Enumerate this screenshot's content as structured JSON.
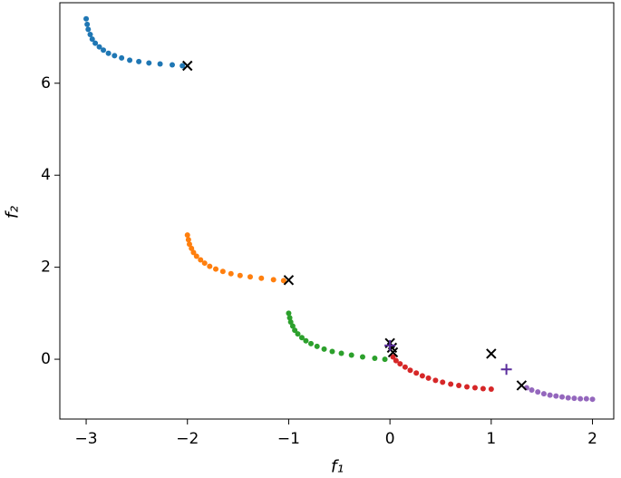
{
  "chart_data": {
    "type": "scatter",
    "xlabel": "f₁",
    "ylabel": "f₂",
    "xlim": [
      -3.26,
      2.21
    ],
    "ylim": [
      -1.3,
      7.75
    ],
    "xticks": [
      {
        "value": -3,
        "label": "−3"
      },
      {
        "value": -2,
        "label": "−2"
      },
      {
        "value": -1,
        "label": "−1"
      },
      0,
      1,
      2
    ],
    "yticks": [
      0,
      2,
      4,
      6
    ],
    "series": [
      {
        "color": "#1f77b4",
        "marker": "o",
        "x": [
          -3.0,
          -2.99,
          -2.98,
          -2.96,
          -2.94,
          -2.91,
          -2.87,
          -2.83,
          -2.78,
          -2.72,
          -2.65,
          -2.57,
          -2.48,
          -2.38,
          -2.27,
          -2.15,
          -2.05
        ],
        "y": [
          7.4,
          7.28,
          7.17,
          7.06,
          6.96,
          6.87,
          6.79,
          6.72,
          6.65,
          6.6,
          6.55,
          6.5,
          6.47,
          6.44,
          6.42,
          6.4,
          6.38
        ]
      },
      {
        "color": "#ff7f0e",
        "marker": "o",
        "x": [
          -2.0,
          -1.99,
          -1.98,
          -1.96,
          -1.94,
          -1.91,
          -1.87,
          -1.83,
          -1.78,
          -1.72,
          -1.65,
          -1.57,
          -1.48,
          -1.38,
          -1.27,
          -1.15,
          -1.05
        ],
        "y": [
          2.7,
          2.6,
          2.5,
          2.41,
          2.32,
          2.24,
          2.16,
          2.09,
          2.02,
          1.96,
          1.91,
          1.86,
          1.82,
          1.79,
          1.76,
          1.73,
          1.71
        ]
      },
      {
        "color": "#2ca02c",
        "marker": "o",
        "x": [
          -1.0,
          -0.99,
          -0.98,
          -0.96,
          -0.94,
          -0.91,
          -0.87,
          -0.83,
          -0.78,
          -0.72,
          -0.65,
          -0.57,
          -0.48,
          -0.38,
          -0.27,
          -0.15,
          -0.05
        ],
        "y": [
          1.0,
          0.9,
          0.81,
          0.72,
          0.63,
          0.55,
          0.47,
          0.4,
          0.34,
          0.28,
          0.22,
          0.17,
          0.13,
          0.09,
          0.05,
          0.02,
          0.0
        ]
      },
      {
        "color": "#d62728",
        "marker": "o",
        "x": [
          0.03,
          0.06,
          0.1,
          0.15,
          0.2,
          0.26,
          0.32,
          0.38,
          0.45,
          0.52,
          0.6,
          0.68,
          0.76,
          0.84,
          0.92,
          1.0
        ],
        "y": [
          0.05,
          -0.03,
          -0.1,
          -0.17,
          -0.24,
          -0.3,
          -0.36,
          -0.41,
          -0.46,
          -0.5,
          -0.54,
          -0.57,
          -0.6,
          -0.62,
          -0.64,
          -0.65
        ]
      },
      {
        "color": "#9467bd",
        "marker": "o",
        "x": [
          1.35,
          1.4,
          1.46,
          1.52,
          1.58,
          1.64,
          1.7,
          1.76,
          1.82,
          1.88,
          1.94,
          2.0
        ],
        "y": [
          -0.62,
          -0.67,
          -0.71,
          -0.75,
          -0.78,
          -0.8,
          -0.82,
          -0.84,
          -0.85,
          -0.86,
          -0.86,
          -0.87
        ]
      },
      {
        "color": "#000000",
        "marker": "x",
        "x": [
          -2.0,
          -1.0,
          0.0,
          0.02,
          0.03,
          1.0,
          1.3
        ],
        "y": [
          6.38,
          1.72,
          0.35,
          0.25,
          0.15,
          0.12,
          -0.57
        ]
      },
      {
        "color": "#5a2d9c",
        "marker": "+",
        "x": [
          0.0,
          1.15
        ],
        "y": [
          0.3,
          -0.22
        ]
      }
    ]
  }
}
